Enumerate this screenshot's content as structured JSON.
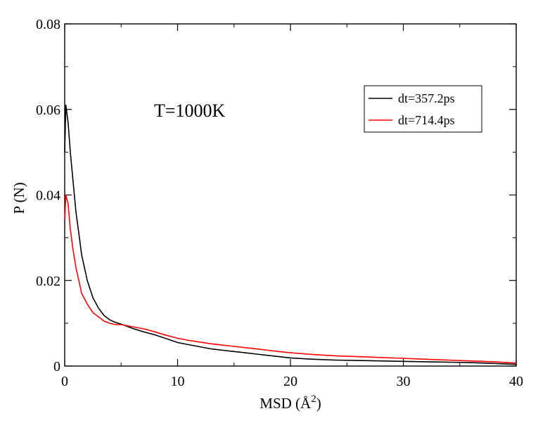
{
  "chart_data": {
    "type": "line",
    "xlabel": "MSD (Å",
    "xlabel_superscript": "2",
    "xlabel_suffix": ")",
    "ylabel": "P (N)",
    "xlim": [
      0,
      40
    ],
    "ylim": [
      0,
      0.08
    ],
    "x_ticks": [
      0,
      10,
      20,
      30,
      40
    ],
    "x_tick_labels": [
      "0",
      "10",
      "20",
      "30",
      "40"
    ],
    "y_ticks": [
      0,
      0.02,
      0.04,
      0.06,
      0.08
    ],
    "y_tick_labels": [
      "0",
      "0.02",
      "0.04",
      "0.06",
      "0.08"
    ],
    "annotation": "T=1000K",
    "legend_position": "top-right",
    "grid": false,
    "series": [
      {
        "name": "dt=357.2ps",
        "color": "#000000",
        "x": [
          0,
          0.1,
          0.3,
          0.5,
          0.75,
          1,
          1.25,
          1.5,
          2,
          2.5,
          3,
          3.5,
          4,
          4.5,
          5,
          6,
          7,
          8,
          9,
          10,
          11,
          12,
          13,
          14,
          15,
          16,
          17,
          18,
          19,
          20,
          22,
          24,
          26,
          28,
          30,
          32,
          34,
          36,
          38,
          40
        ],
        "y": [
          0.05,
          0.061,
          0.057,
          0.05,
          0.043,
          0.036,
          0.031,
          0.026,
          0.02,
          0.016,
          0.0135,
          0.0118,
          0.0108,
          0.0102,
          0.0098,
          0.0088,
          0.008,
          0.0073,
          0.0064,
          0.0055,
          0.005,
          0.0045,
          0.004,
          0.0037,
          0.0034,
          0.0031,
          0.0028,
          0.0025,
          0.0022,
          0.0019,
          0.0016,
          0.0014,
          0.0013,
          0.0012,
          0.0011,
          0.001,
          0.0009,
          0.0008,
          0.0006,
          0.0004
        ]
      },
      {
        "name": "dt=714.4ps",
        "color": "#ff0000",
        "x": [
          0,
          0.1,
          0.3,
          0.5,
          0.75,
          1,
          1.25,
          1.5,
          2,
          2.5,
          3,
          3.5,
          4,
          4.5,
          5,
          6,
          7,
          8,
          9,
          10,
          11,
          12,
          13,
          14,
          15,
          16,
          17,
          18,
          19,
          20,
          22,
          24,
          26,
          28,
          30,
          32,
          34,
          36,
          38,
          40
        ],
        "y": [
          0.034,
          0.04,
          0.038,
          0.032,
          0.027,
          0.023,
          0.02,
          0.017,
          0.0145,
          0.0125,
          0.0115,
          0.0105,
          0.01,
          0.0097,
          0.0097,
          0.0092,
          0.0087,
          0.008,
          0.0072,
          0.0065,
          0.006,
          0.0056,
          0.0052,
          0.0049,
          0.0046,
          0.0043,
          0.004,
          0.0037,
          0.0034,
          0.0031,
          0.0027,
          0.0024,
          0.0022,
          0.002,
          0.0018,
          0.0016,
          0.0014,
          0.0012,
          0.001,
          0.0007
        ]
      }
    ]
  }
}
